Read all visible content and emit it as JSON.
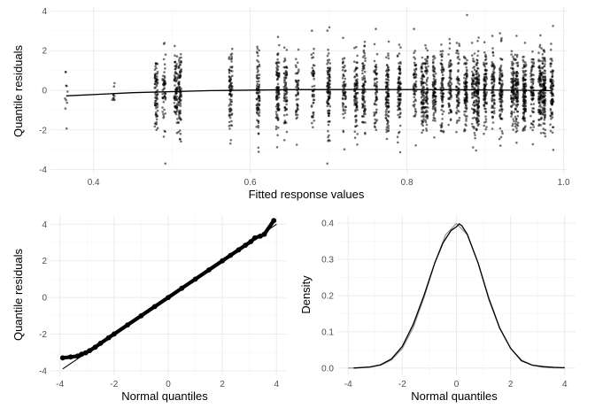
{
  "chart_data": [
    {
      "type": "scatter",
      "xlabel": "Fitted response values",
      "ylabel": "Quantile residuals",
      "xlim": [
        0.345,
        1.005
      ],
      "ylim": [
        -4.2,
        4.2
      ],
      "xticks": [
        0.4,
        0.6,
        0.8,
        1.0
      ],
      "xtick_labels": [
        "0.4",
        "0.6",
        "0.8",
        "1.0"
      ],
      "yticks": [
        -4,
        -2,
        0,
        2,
        4
      ],
      "ytick_labels": [
        "-4",
        "-2",
        "0",
        "2",
        "4"
      ],
      "grid": true,
      "point_color": "#000000",
      "point_opacity": 0.55,
      "fitted_value_columns": [
        0.365,
        0.425,
        0.48,
        0.49,
        0.505,
        0.51,
        0.575,
        0.61,
        0.635,
        0.645,
        0.66,
        0.68,
        0.7,
        0.72,
        0.735,
        0.745,
        0.76,
        0.775,
        0.79,
        0.81,
        0.82,
        0.825,
        0.835,
        0.845,
        0.855,
        0.865,
        0.875,
        0.885,
        0.89,
        0.9,
        0.91,
        0.92,
        0.935,
        0.94,
        0.95,
        0.96,
        0.97,
        0.975,
        0.985
      ],
      "smooth_line": {
        "x": [
          0.365,
          0.45,
          0.55,
          0.65,
          0.75,
          0.85,
          0.95,
          0.985
        ],
        "y": [
          -0.28,
          -0.12,
          -0.02,
          0.03,
          0.04,
          0.03,
          0.0,
          -0.02
        ]
      }
    },
    {
      "type": "scatter",
      "xlabel": "Normal quantiles",
      "ylabel": "Quantile residuals",
      "xlim": [
        -4.35,
        4.35
      ],
      "ylim": [
        -4.25,
        4.45
      ],
      "xticks": [
        -4,
        -2,
        0,
        2,
        4
      ],
      "xtick_labels": [
        "-4",
        "-2",
        "0",
        "2",
        "4"
      ],
      "yticks": [
        -4,
        -2,
        0,
        2,
        4
      ],
      "ytick_labels": [
        "-4",
        "-2",
        "0",
        "2",
        "4"
      ],
      "grid": true,
      "qq_points": {
        "x": [
          -3.9,
          -3.6,
          -3.35,
          -3.2,
          -3.05,
          -2.9,
          -2.7,
          -2.5,
          -2.2,
          -2.0,
          -1.5,
          -1.0,
          -0.5,
          0.0,
          0.5,
          1.0,
          1.5,
          2.0,
          2.3,
          2.6,
          2.85,
          3.05,
          3.2,
          3.4,
          3.55,
          3.9
        ],
        "y": [
          -3.3,
          -3.25,
          -3.2,
          -3.1,
          -3.02,
          -2.9,
          -2.72,
          -2.5,
          -2.2,
          -2.0,
          -1.5,
          -1.0,
          -0.5,
          0.0,
          0.5,
          1.0,
          1.5,
          2.0,
          2.3,
          2.6,
          2.85,
          3.05,
          3.25,
          3.35,
          3.45,
          4.2
        ]
      },
      "reference_line": {
        "x": [
          -3.9,
          4.0
        ],
        "y": [
          -3.9,
          4.0
        ]
      }
    },
    {
      "type": "line",
      "xlabel": "Normal quantiles",
      "ylabel": "Density",
      "xlim": [
        -4.4,
        4.4
      ],
      "ylim": [
        -0.02,
        0.42
      ],
      "xticks": [
        -4,
        -2,
        0,
        2,
        4
      ],
      "xtick_labels": [
        "-4",
        "-2",
        "0",
        "2",
        "4"
      ],
      "yticks": [
        0.0,
        0.1,
        0.2,
        0.3,
        0.4
      ],
      "ytick_labels": [
        "0.0",
        "0.1",
        "0.2",
        "0.3",
        "0.4"
      ],
      "grid": true,
      "series": [
        {
          "color": "#000000",
          "x": [
            -3.8,
            -3.2,
            -2.8,
            -2.4,
            -2.0,
            -1.6,
            -1.2,
            -0.8,
            -0.5,
            -0.2,
            0.0,
            0.1,
            0.2,
            0.4,
            0.8,
            1.2,
            1.6,
            2.0,
            2.4,
            2.8,
            3.2,
            3.6,
            4.0
          ],
          "y": [
            0.0,
            0.003,
            0.009,
            0.025,
            0.06,
            0.12,
            0.2,
            0.29,
            0.345,
            0.38,
            0.39,
            0.398,
            0.393,
            0.37,
            0.29,
            0.19,
            0.11,
            0.055,
            0.02,
            0.008,
            0.004,
            0.002,
            0.001
          ]
        },
        {
          "color": "#999999",
          "x": [
            -4.0,
            -3.6,
            -3.2,
            -2.8,
            -2.4,
            -2.0,
            -1.6,
            -1.2,
            -0.8,
            -0.4,
            0.0,
            0.4,
            0.8,
            1.2,
            1.6,
            2.0,
            2.4,
            2.8,
            3.2,
            3.6,
            4.0
          ],
          "y": [
            0.0001,
            0.0006,
            0.0024,
            0.0079,
            0.0224,
            0.054,
            0.1109,
            0.1942,
            0.2897,
            0.3683,
            0.3989,
            0.3683,
            0.2897,
            0.1942,
            0.1109,
            0.054,
            0.0224,
            0.0079,
            0.0024,
            0.0006,
            0.0001
          ]
        }
      ]
    }
  ]
}
